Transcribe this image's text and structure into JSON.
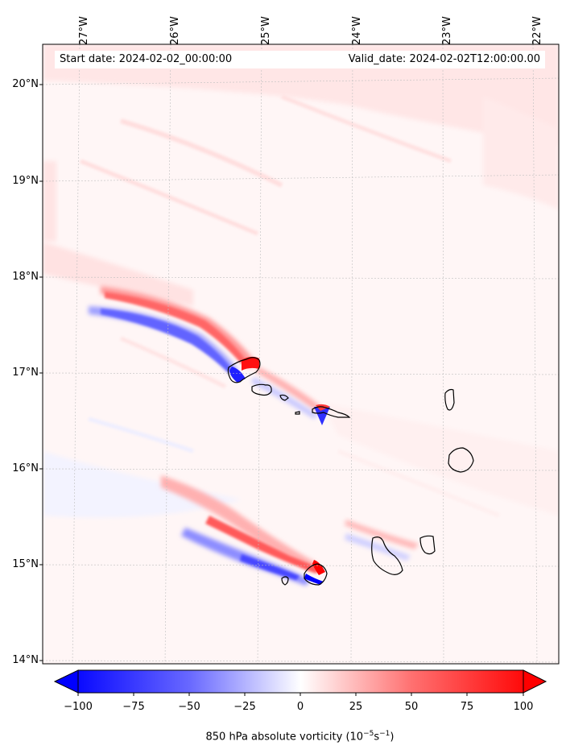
{
  "map": {
    "start_date": "Start date: 2024-02-02_00:00:00",
    "valid_date": "Valid_date: 2024-02-02T12:00:00.00",
    "lon_labels": [
      "27°W",
      "26°W",
      "25°W",
      "24°W",
      "23°W",
      "22°W"
    ],
    "lat_labels": [
      "20°N",
      "19°N",
      "18°N",
      "17°N",
      "16°N",
      "15°N",
      "14°N"
    ],
    "region": "Cabo Verde islands",
    "field": "850 hPa absolute vorticity"
  },
  "colorbar": {
    "ticks": [
      "−100",
      "−75",
      "−50",
      "−25",
      "0",
      "25",
      "50",
      "75",
      "100"
    ],
    "label_main": "850 hPa absolute vorticity (10",
    "label_exp1": "−5",
    "label_mid": "s",
    "label_exp2": "−1",
    "label_end": ")",
    "range": [
      -100,
      100
    ],
    "colors": {
      "neg": "#0000ff",
      "zero": "#ffffff",
      "pos": "#ff0000"
    }
  }
}
